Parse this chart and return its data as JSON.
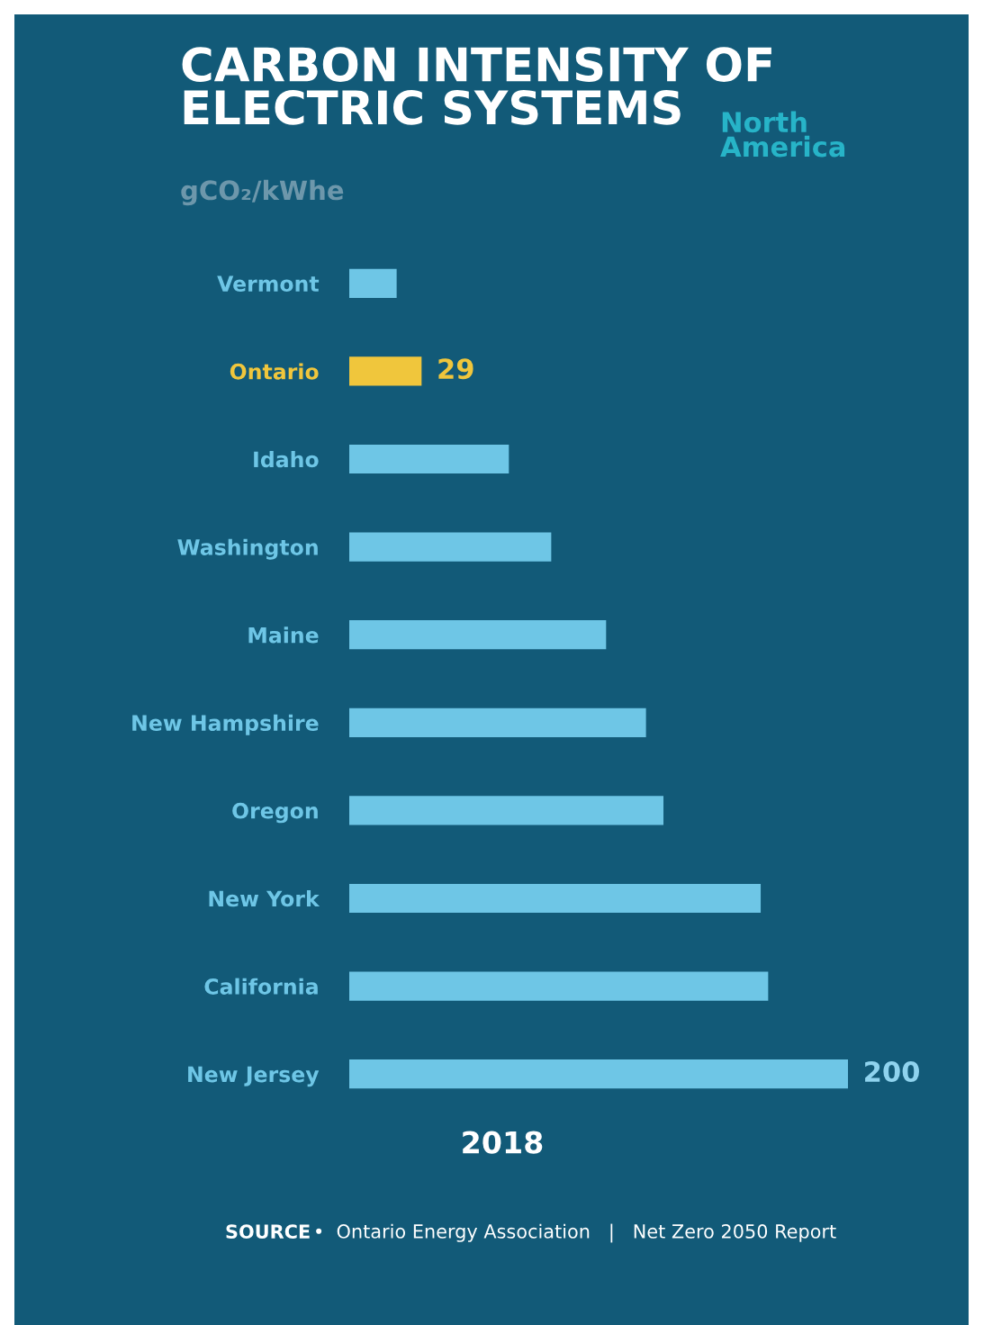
{
  "chart_data": {
    "type": "bar",
    "orientation": "horizontal",
    "title": "CARBON INTENSITY OF\nELECTRIC SYSTEMS",
    "subtitle": "North\nAmerica",
    "ylabel": "gCO₂/kWhe",
    "xlabel": "2018",
    "categories": [
      "Vermont",
      "Ontario",
      "Idaho",
      "Washington",
      "Maine",
      "New Hampshire",
      "Oregon",
      "New York",
      "California",
      "New Jersey"
    ],
    "values": [
      19,
      29,
      64,
      81,
      103,
      119,
      126,
      165,
      168,
      200
    ],
    "colors": [
      "#6ec6e6",
      "#f0c63c",
      "#6ec6e6",
      "#6ec6e6",
      "#6ec6e6",
      "#6ec6e6",
      "#6ec6e6",
      "#6ec6e6",
      "#6ec6e6",
      "#6ec6e6"
    ],
    "value_labels": [
      null,
      "29",
      null,
      null,
      null,
      null,
      null,
      null,
      null,
      "200"
    ],
    "annotations": [
      "SOURCE",
      "•  Ontario Energy Association   |   Net Zero 2050 Report"
    ],
    "grid": false,
    "legend": false
  }
}
